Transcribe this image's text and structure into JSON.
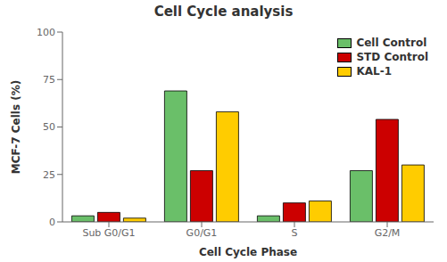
{
  "chart_data": {
    "type": "bar",
    "title": "Cell Cycle analysis",
    "xlabel": "Cell Cycle Phase",
    "ylabel": "MCF-7 Cells (%)",
    "categories": [
      "Sub G0/G1",
      "G0/G1",
      "S",
      "G2/M"
    ],
    "series": [
      {
        "name": "Cell Control",
        "color": "#6abf69",
        "values": [
          3.2,
          69.0,
          3.2,
          27.0
        ]
      },
      {
        "name": "STD Control",
        "color": "#cc0000",
        "values": [
          5.0,
          27.0,
          10.0,
          54.0
        ]
      },
      {
        "name": "KAL-1",
        "color": "#ffcc00",
        "values": [
          2.0,
          58.0,
          11.0,
          30.0
        ]
      }
    ],
    "ylim": [
      0,
      100
    ],
    "yticks": [
      0,
      25,
      50,
      75,
      100
    ],
    "grid": false,
    "legend": "upper right"
  }
}
